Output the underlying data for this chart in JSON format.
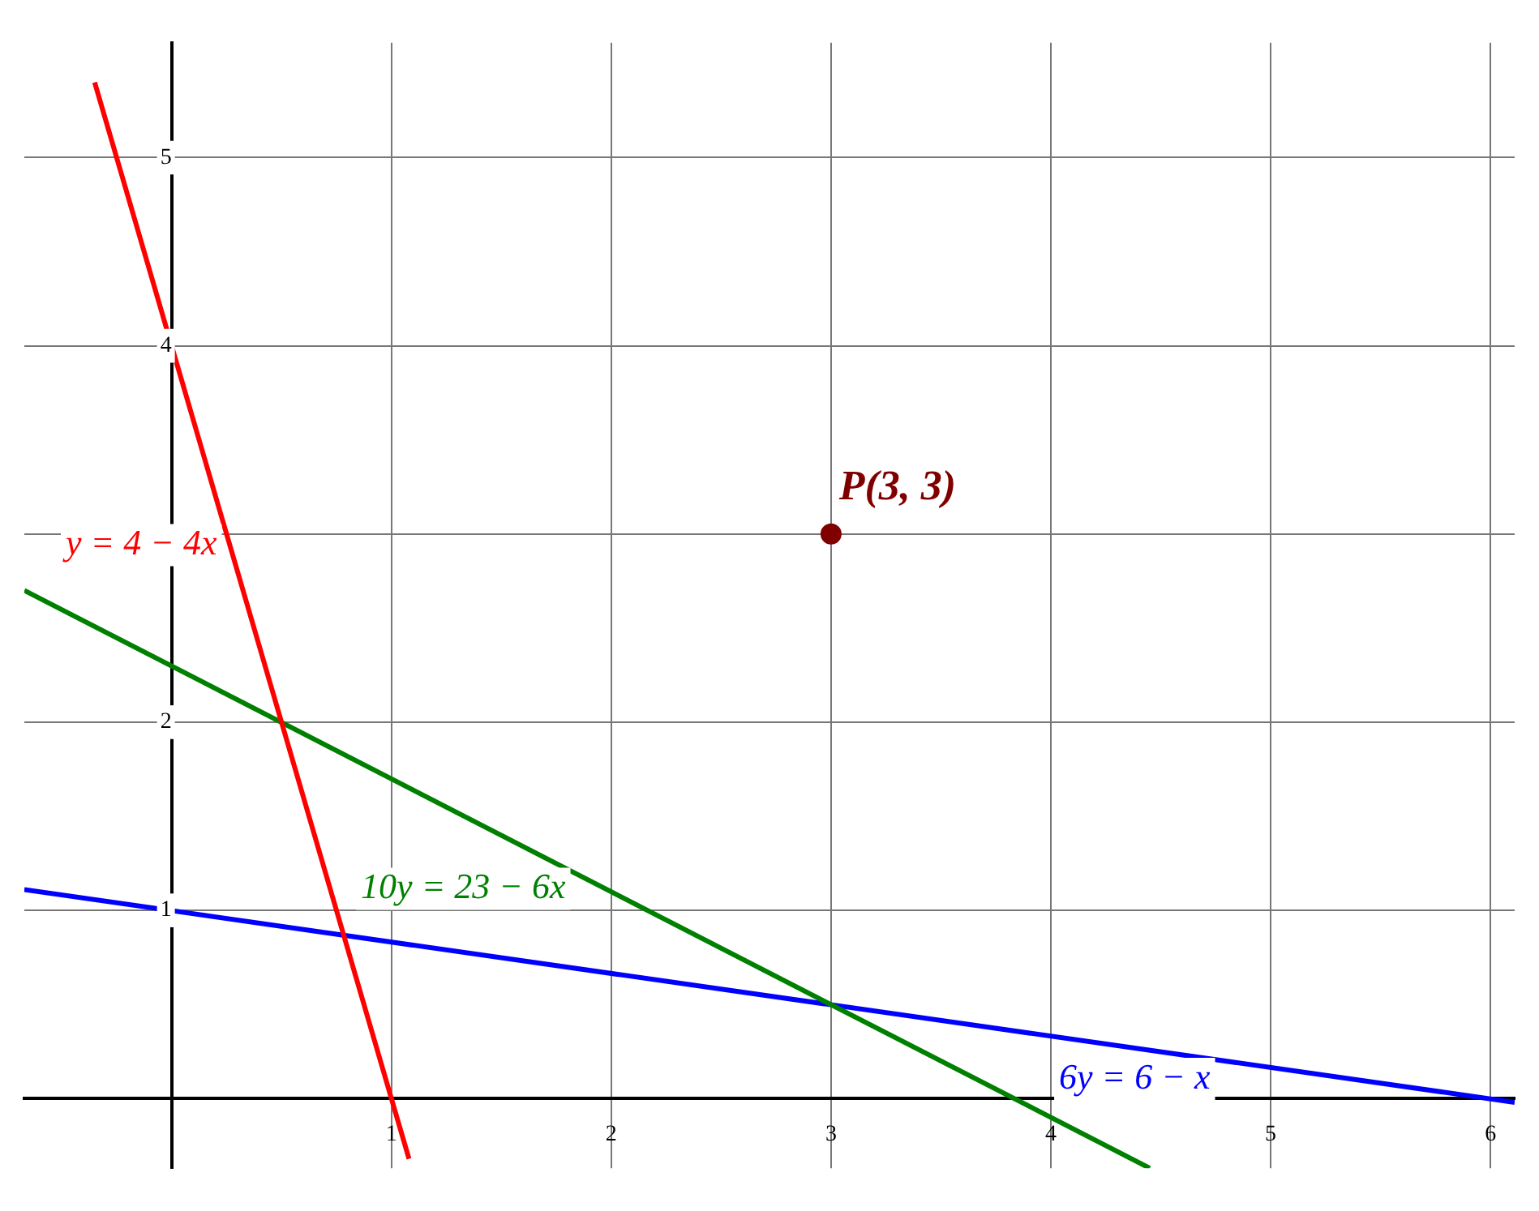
{
  "chart_data": {
    "type": "line",
    "xlim": [
      -0.67,
      6.11
    ],
    "ylim": [
      -0.37,
      5.61
    ],
    "xticks": [
      1,
      2,
      3,
      4,
      5,
      6
    ],
    "yticks": [
      1,
      2,
      {
        "value": 3,
        "label": null
      },
      4,
      5
    ],
    "grid": true,
    "legend": false,
    "marker": "none",
    "line_style": "solid",
    "series": [
      {
        "name": "y = 4 − 4x",
        "color": "#ff0000",
        "x": [
          -0.35,
          1.08
        ],
        "values": [
          5.4,
          -0.32
        ]
      },
      {
        "name": "10y = 23 − 6x",
        "color": "#008000",
        "x": [
          -0.67,
          4.45
        ],
        "values": [
          2.7,
          -0.37
        ]
      },
      {
        "name": "6y = 6 − x",
        "color": "#0000ff",
        "x": [
          -0.67,
          6.11
        ],
        "values": [
          1.11,
          -0.02
        ]
      },
      {
        "name": "P(3, 3)",
        "type": "scatter",
        "marker": "circle",
        "color": "#800000",
        "x": [
          3
        ],
        "values": [
          3
        ]
      }
    ]
  }
}
